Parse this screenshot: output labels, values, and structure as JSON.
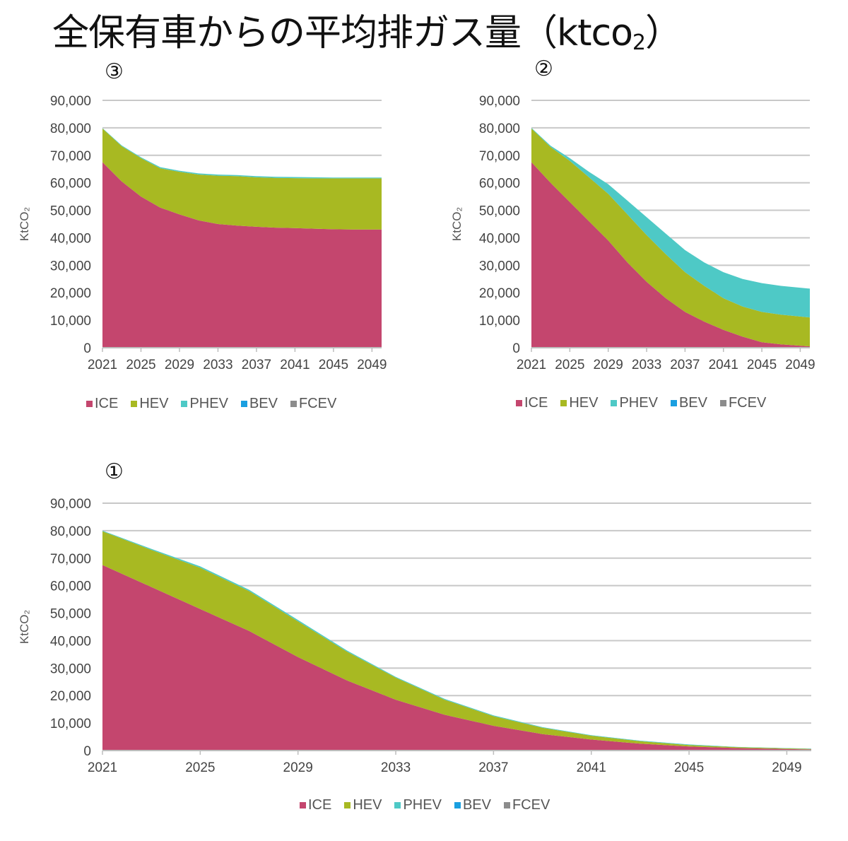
{
  "title": "全保有車からの平均排ガス量（ktco",
  "title_sub": "2",
  "title_close": "）",
  "colors": {
    "ICE": "#c4466e",
    "HEV": "#a8b922",
    "PHEV": "#4ec9c6",
    "BEV": "#1a9fe0",
    "FCEV": "#8c8c8c"
  },
  "legend": [
    "ICE",
    "HEV",
    "PHEV",
    "BEV",
    "FCEV"
  ],
  "chart_data": [
    {
      "id": "scenario-3",
      "label": "③",
      "type": "area",
      "ylabel": "KtCO₂",
      "ylim": [
        0,
        90000
      ],
      "yticks": [
        "0",
        "10,000",
        "20,000",
        "30,000",
        "40,000",
        "50,000",
        "60,000",
        "70,000",
        "80,000",
        "90,000"
      ],
      "xticks": [
        "2021",
        "2025",
        "2029",
        "2033",
        "2037",
        "2041",
        "2045",
        "2049"
      ],
      "x": [
        2021,
        2023,
        2025,
        2027,
        2029,
        2031,
        2033,
        2035,
        2037,
        2039,
        2041,
        2043,
        2045,
        2047,
        2050
      ],
      "series": [
        {
          "name": "ICE",
          "values": [
            67500,
            60500,
            55000,
            51000,
            48500,
            46300,
            45000,
            44400,
            44000,
            43700,
            43500,
            43300,
            43100,
            43000,
            43000
          ]
        },
        {
          "name": "HEV",
          "values": [
            12300,
            12800,
            14000,
            14300,
            15500,
            16700,
            17600,
            18000,
            18000,
            18100,
            18200,
            18300,
            18500,
            18600,
            18600
          ]
        },
        {
          "name": "PHEV",
          "values": [
            100,
            300,
            300,
            400,
            400,
            400,
            400,
            400,
            400,
            400,
            400,
            400,
            300,
            300,
            300
          ]
        },
        {
          "name": "BEV",
          "values": [
            0,
            0,
            0,
            0,
            0,
            0,
            0,
            0,
            0,
            0,
            0,
            0,
            0,
            0,
            0
          ]
        },
        {
          "name": "FCEV",
          "values": [
            0,
            0,
            0,
            0,
            0,
            0,
            0,
            0,
            0,
            0,
            0,
            0,
            0,
            0,
            0
          ]
        }
      ]
    },
    {
      "id": "scenario-2",
      "label": "②",
      "type": "area",
      "ylabel": "KtCO₂",
      "ylim": [
        0,
        90000
      ],
      "yticks": [
        "0",
        "10,000",
        "20,000",
        "30,000",
        "40,000",
        "50,000",
        "60,000",
        "70,000",
        "80,000",
        "90,000"
      ],
      "xticks": [
        "2021",
        "2025",
        "2029",
        "2033",
        "2037",
        "2041",
        "2045",
        "2049"
      ],
      "x": [
        2021,
        2023,
        2025,
        2027,
        2029,
        2031,
        2033,
        2035,
        2037,
        2039,
        2041,
        2043,
        2045,
        2047,
        2050
      ],
      "series": [
        {
          "name": "ICE",
          "values": [
            67500,
            60000,
            53000,
            46000,
            39000,
            31000,
            24000,
            18000,
            13000,
            9500,
            6500,
            4000,
            2000,
            1200,
            500
          ]
        },
        {
          "name": "HEV",
          "values": [
            12300,
            13000,
            15000,
            16000,
            17000,
            17500,
            17000,
            16000,
            14500,
            13000,
            11500,
            11000,
            11000,
            10800,
            10500
          ]
        },
        {
          "name": "PHEV",
          "values": [
            200,
            500,
            1000,
            2000,
            3500,
            5000,
            6500,
            7500,
            8000,
            8500,
            9500,
            10000,
            10500,
            10500,
            10500
          ]
        },
        {
          "name": "BEV",
          "values": [
            0,
            0,
            0,
            0,
            0,
            0,
            0,
            0,
            0,
            0,
            0,
            0,
            0,
            0,
            0
          ]
        },
        {
          "name": "FCEV",
          "values": [
            0,
            0,
            0,
            0,
            0,
            0,
            0,
            0,
            0,
            0,
            0,
            0,
            0,
            0,
            0
          ]
        }
      ]
    },
    {
      "id": "scenario-1",
      "label": "①",
      "type": "area",
      "ylabel": "KtCO₂",
      "ylim": [
        0,
        90000
      ],
      "yticks": [
        "0",
        "10,000",
        "20,000",
        "30,000",
        "40,000",
        "50,000",
        "60,000",
        "70,000",
        "80,000",
        "90,000"
      ],
      "xticks": [
        "2021",
        "2025",
        "2029",
        "2033",
        "2037",
        "2041",
        "2045",
        "2049"
      ],
      "x": [
        2021,
        2023,
        2025,
        2027,
        2029,
        2031,
        2033,
        2035,
        2037,
        2039,
        2041,
        2043,
        2045,
        2047,
        2050
      ],
      "series": [
        {
          "name": "ICE",
          "values": [
            67500,
            59500,
            51500,
            43500,
            34000,
            25500,
            18500,
            13000,
            9000,
            6000,
            4000,
            2500,
            1500,
            900,
            400
          ]
        },
        {
          "name": "HEV",
          "values": [
            12300,
            13500,
            15000,
            14500,
            13000,
            10500,
            8000,
            5500,
            3500,
            2300,
            1400,
            900,
            500,
            300,
            200
          ]
        },
        {
          "name": "PHEV",
          "values": [
            200,
            400,
            500,
            500,
            500,
            400,
            300,
            300,
            300,
            200,
            200,
            200,
            200,
            100,
            100
          ]
        },
        {
          "name": "BEV",
          "values": [
            0,
            0,
            0,
            0,
            0,
            0,
            0,
            0,
            0,
            0,
            0,
            0,
            0,
            0,
            0
          ]
        },
        {
          "name": "FCEV",
          "values": [
            0,
            0,
            0,
            0,
            0,
            0,
            0,
            0,
            0,
            0,
            0,
            0,
            0,
            0,
            0
          ]
        }
      ]
    }
  ]
}
